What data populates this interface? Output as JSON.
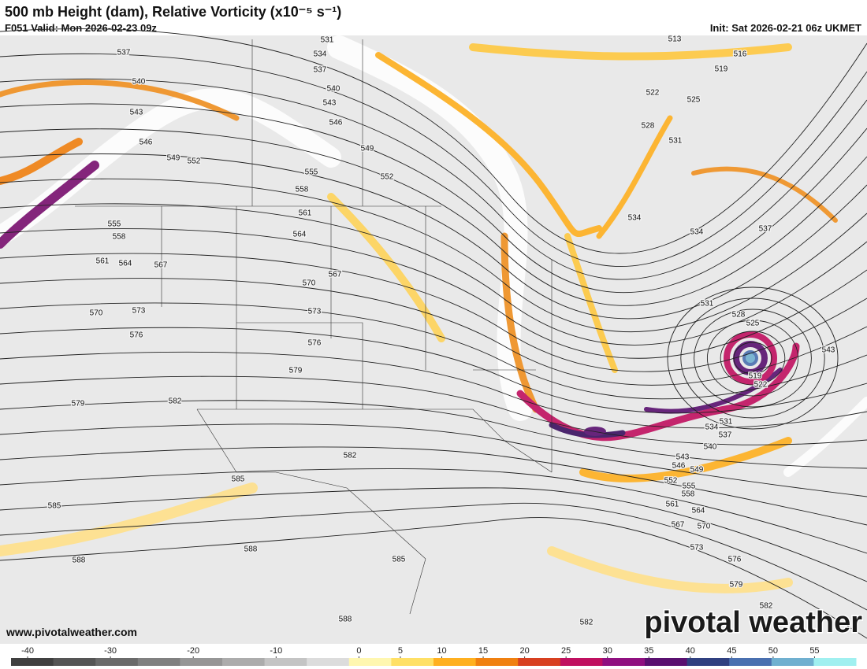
{
  "header": {
    "title": "500 mb Height (dam), Relative Vorticity (x10⁻⁵ s⁻¹)",
    "valid": "F051 Valid: Mon 2026-02-23 09z",
    "init": "Init: Sat 2026-02-21 06z UKMET"
  },
  "map": {
    "contour_labels": [
      531,
      534,
      537,
      540,
      543,
      546,
      549,
      552,
      555,
      558,
      561,
      564,
      567,
      570,
      573,
      576,
      579,
      582,
      585,
      588,
      585,
      588,
      582,
      582,
      579,
      576,
      573,
      570,
      567,
      564,
      561,
      558,
      555,
      552,
      549,
      546,
      543,
      540,
      537,
      534,
      531,
      528,
      525,
      531,
      522,
      519,
      543,
      537,
      534,
      534,
      531,
      528,
      525,
      522,
      519,
      516,
      513,
      537,
      540,
      543,
      546,
      549,
      552,
      555,
      558,
      561,
      564,
      567,
      570,
      573,
      576,
      579,
      582,
      585,
      588
    ]
  },
  "colorbar": {
    "lim": [
      -42,
      60
    ],
    "ticks": [
      -40,
      -30,
      -20,
      -10,
      0,
      5,
      10,
      15,
      20,
      25,
      30,
      35,
      40,
      45,
      50,
      55
    ],
    "colors": [
      "#404040",
      "#555555",
      "#6a6a6a",
      "#808080",
      "#969696",
      "#acacac",
      "#c4c4c4",
      "#dcdcdc",
      "#fff7b0",
      "#ffe066",
      "#ffb020",
      "#f08010",
      "#d84020",
      "#c01060",
      "#901080",
      "#5a1070",
      "#304080",
      "#4a70b0",
      "#70b0d0",
      "#a0f0f0"
    ]
  },
  "footer": {
    "website": "www.pivotalweather.com",
    "watermark": "pivotal weather"
  }
}
